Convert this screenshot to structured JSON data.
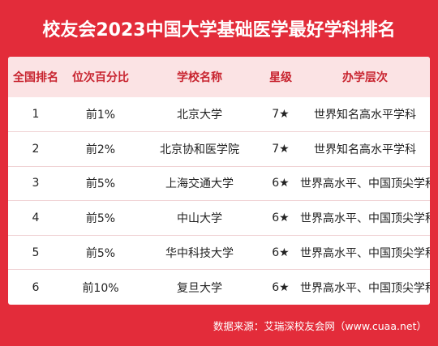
{
  "title": "校友会2023中国大学基础医学最好学科排名",
  "table": {
    "headers": [
      "全国排名",
      "位次百分比",
      "学校名称",
      "星级",
      "办学层次"
    ],
    "rows": [
      [
        "1",
        "前1%",
        "北京大学",
        "7★",
        "世界知名高水平学科"
      ],
      [
        "2",
        "前2%",
        "北京协和医学院",
        "7★",
        "世界知名高水平学科"
      ],
      [
        "3",
        "前5%",
        "上海交通大学",
        "6★",
        "世界高水平、中国顶尖学科"
      ],
      [
        "4",
        "前5%",
        "中山大学",
        "6★",
        "世界高水平、中国顶尖学科"
      ],
      [
        "5",
        "前5%",
        "华中科技大学",
        "6★",
        "世界高水平、中国顶尖学科"
      ],
      [
        "6",
        "前10%",
        "复旦大学",
        "6★",
        "世界高水平、中国顶尖学科"
      ]
    ]
  },
  "footer": "数据来源：艾瑞深校友会网（www.cuaa.net）",
  "colors": {
    "background": "#e32c3a",
    "header_bg": "#fbe3e4",
    "header_text": "#c8242f"
  }
}
